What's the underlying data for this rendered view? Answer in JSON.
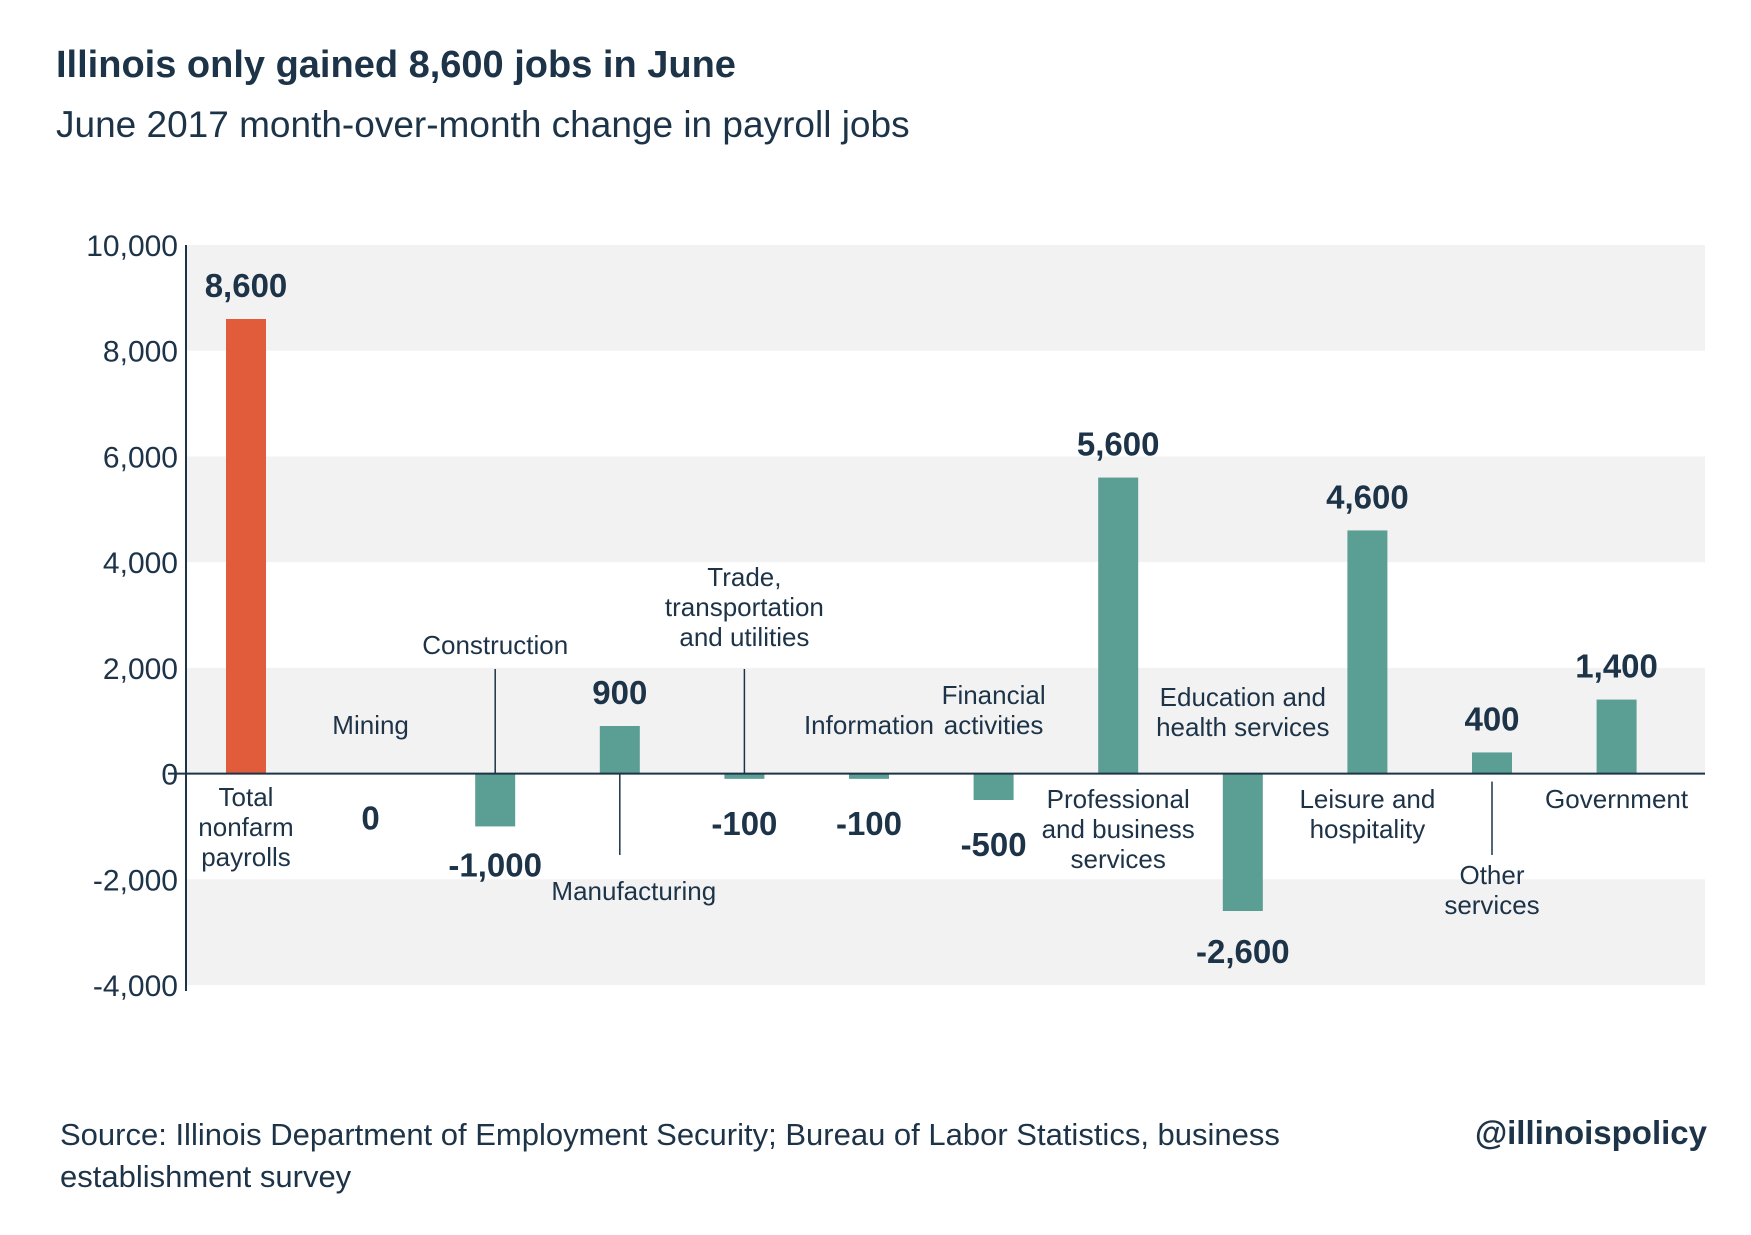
{
  "chart_data": {
    "type": "bar",
    "title": "Illinois only gained 8,600 jobs in June",
    "subtitle": "June 2017 month-over-month change in payroll jobs",
    "ylim": [
      -4000,
      10000
    ],
    "yticks": [
      10000,
      8000,
      6000,
      4000,
      2000,
      0,
      -2000,
      -4000
    ],
    "ytick_labels": [
      "10,000",
      "8,000",
      "6,000",
      "4,000",
      "2,000",
      "0",
      "-2,000",
      "-4,000"
    ],
    "grid_bands": true,
    "categories": [
      "Total nonfarm payrolls",
      "Mining",
      "Construction",
      "Manufacturing",
      "Trade, transportation and utilities",
      "Information",
      "Financial activities",
      "Professional and business services",
      "Education and health services",
      "Leisure and hospitality",
      "Other services",
      "Government"
    ],
    "category_label_lines": [
      [
        "Total",
        "nonfarm",
        "payrolls"
      ],
      [
        "Mining"
      ],
      [
        "Construction"
      ],
      [
        "Manufacturing"
      ],
      [
        "Trade,",
        "transportation",
        "and utilities"
      ],
      [
        "Information"
      ],
      [
        "Financial",
        "activities"
      ],
      [
        "Professional",
        "and business",
        "services"
      ],
      [
        "Education and",
        "health services"
      ],
      [
        "Leisure and",
        "hospitality"
      ],
      [
        "Other",
        "services"
      ],
      [
        "Government"
      ]
    ],
    "values": [
      8600,
      0,
      -1000,
      900,
      -100,
      -100,
      -500,
      5600,
      -2600,
      4600,
      400,
      1400
    ],
    "value_labels": [
      "8,600",
      "0",
      "-1,000",
      "900",
      "-100",
      "-100",
      "-500",
      "5,600",
      "-2,600",
      "4,600",
      "400",
      "1,400"
    ],
    "colors": {
      "highlight": "#e05c3a",
      "bar": "#5b9e93",
      "band": "#f2f2f2",
      "axis": "#1d3348"
    }
  },
  "source": "Source: Illinois Department of Employment Security; Bureau of Labor Statistics, business establishment survey",
  "brand": "@illinoispolicy"
}
